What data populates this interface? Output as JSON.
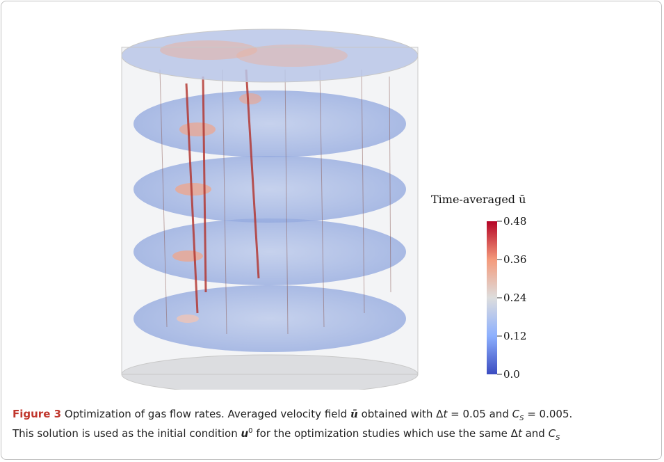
{
  "colorbar": {
    "title": "Time-averaged ū",
    "lim": [
      0,
      0.48
    ],
    "ticks": [
      {
        "value": 0,
        "label": "0.0"
      },
      0.12,
      0.24,
      0.36,
      0.48
    ]
  },
  "caption": {
    "label": "Figure 3",
    "line1": [
      " Optimization of gas flow rates. Averaged velocity field ",
      "ū",
      " obtained with Δ",
      "t",
      " = 0.05 and ",
      "C",
      "S",
      " = 0.005."
    ],
    "line2": [
      "This solution is used as the initial condition ",
      "u",
      "0",
      " for the optimization studies which use the same Δ",
      "t",
      " and ",
      "C",
      "S"
    ]
  }
}
